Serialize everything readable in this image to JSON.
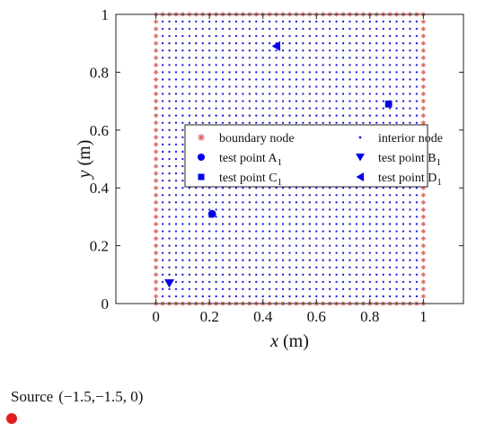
{
  "chart_data": {
    "type": "scatter",
    "xlabel_var": "x",
    "xlabel_unit": " (m)",
    "ylabel_var": "y",
    "ylabel_unit": " (m)",
    "xlim": [
      -0.15,
      1.15
    ],
    "ylim": [
      0,
      1
    ],
    "xticks": [
      0,
      0.2,
      0.4,
      0.6,
      0.8,
      1
    ],
    "xtick_labels": [
      "0",
      "0.2",
      "0.4",
      "0.6",
      "0.8",
      "1"
    ],
    "yticks": [
      0,
      0.2,
      0.4,
      0.6,
      0.8,
      1
    ],
    "ytick_labels": [
      "0",
      "0.2",
      "0.4",
      "0.6",
      "0.8",
      "1"
    ],
    "grid": false,
    "legend_position": "center",
    "node_grid_spacing": 0.025,
    "series": [
      {
        "name": "boundary node",
        "marker": "asterisk",
        "color": "#e06060",
        "description": "nodes on square boundary 0..1, spacing 0.025"
      },
      {
        "name": "interior node",
        "marker": "dot",
        "color": "#1a1adc",
        "description": "interior nodes spacing 0.025"
      },
      {
        "name": "test point A",
        "name_sub": "1",
        "marker": "circle",
        "color": "#0000ee",
        "x": 0.21,
        "y": 0.31
      },
      {
        "name": "test point B",
        "name_sub": "1",
        "marker": "triangle-down",
        "color": "#0000ee",
        "x": 0.05,
        "y": 0.07
      },
      {
        "name": "test point C",
        "name_sub": "1",
        "marker": "square",
        "color": "#0000ee",
        "x": 0.87,
        "y": 0.69
      },
      {
        "name": "test point D",
        "name_sub": "1",
        "marker": "triangle-left",
        "color": "#0000ee",
        "x": 0.45,
        "y": 0.89
      }
    ],
    "source": {
      "label": "Source",
      "coords_text": "(−1.5,−1.5,  0)",
      "color": "#e02020"
    }
  }
}
